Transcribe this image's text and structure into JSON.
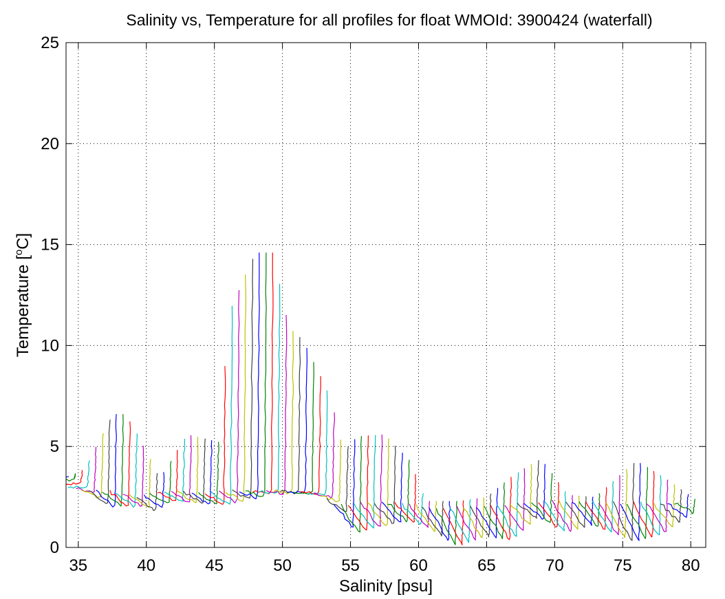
{
  "chart_data": {
    "type": "line",
    "title": "Salinity vs, Temperature for all profiles for float WMOId: 3900424 (waterfall)",
    "xlabel": "Salinity [psu]",
    "ylabel_main": "Temperature [",
    "ylabel_sup": "o",
    "ylabel_end": "C]",
    "xlim": [
      34.1,
      81.1
    ],
    "ylim": [
      0,
      25
    ],
    "x_ticks": [
      35,
      40,
      45,
      50,
      55,
      60,
      65,
      70,
      75,
      80
    ],
    "y_ticks": [
      0,
      5,
      10,
      15,
      20,
      25
    ],
    "x_tick_labels": [
      "35",
      "40",
      "45",
      "50",
      "55",
      "60",
      "65",
      "70",
      "75",
      "80"
    ],
    "y_tick_labels": [
      "0",
      "5",
      "10",
      "15",
      "20",
      "25"
    ],
    "grid": true,
    "waterfall_offset_per_profile": 0.5,
    "line_colors": [
      "#0000ff",
      "#008000",
      "#ff0000",
      "#00bfbf",
      "#bf00bf",
      "#bfbf00",
      "#404040"
    ],
    "profile_envelope": {
      "x": [
        34.3,
        35.5,
        37.5,
        38.5,
        40,
        41,
        42,
        43,
        45.5,
        46,
        48,
        49.3,
        50.5,
        51.5,
        53.5,
        54.5,
        55.5,
        57.5,
        59.5,
        60.5,
        63,
        65,
        67,
        69,
        71,
        73,
        76,
        78,
        80.3
      ],
      "top_temp": [
        3.5,
        3.9,
        6.6,
        6.6,
        4.8,
        3.4,
        4.5,
        5.6,
        5.2,
        11.5,
        14.6,
        14.6,
        10.9,
        10.3,
        7.5,
        4.8,
        5.5,
        5.6,
        4.2,
        2.3,
        2.3,
        2.5,
        3.6,
        4.4,
        2.6,
        2.5,
        4.3,
        3.5,
        2.4
      ],
      "bottom_temp": [
        3.5,
        3.2,
        2.0,
        2.0,
        2.0,
        1.8,
        2.3,
        2.2,
        2.1,
        2.1,
        2.4,
        2.6,
        2.7,
        2.7,
        2.6,
        2.2,
        0.6,
        1.0,
        1.3,
        1.1,
        0.0,
        0.5,
        0.3,
        1.5,
        0.7,
        1.1,
        0.2,
        0.6,
        1.7
      ],
      "deep_temp": [
        3.5,
        3.0,
        2.8,
        2.8,
        2.7,
        2.5,
        2.7,
        2.8,
        2.7,
        2.7,
        2.8,
        2.8,
        2.8,
        2.8,
        2.7,
        2.5,
        2.1,
        2.2,
        2.2,
        2.1,
        2.0,
        2.0,
        2.1,
        2.2,
        2.3,
        2.3,
        2.2,
        2.2,
        2.2
      ]
    }
  }
}
